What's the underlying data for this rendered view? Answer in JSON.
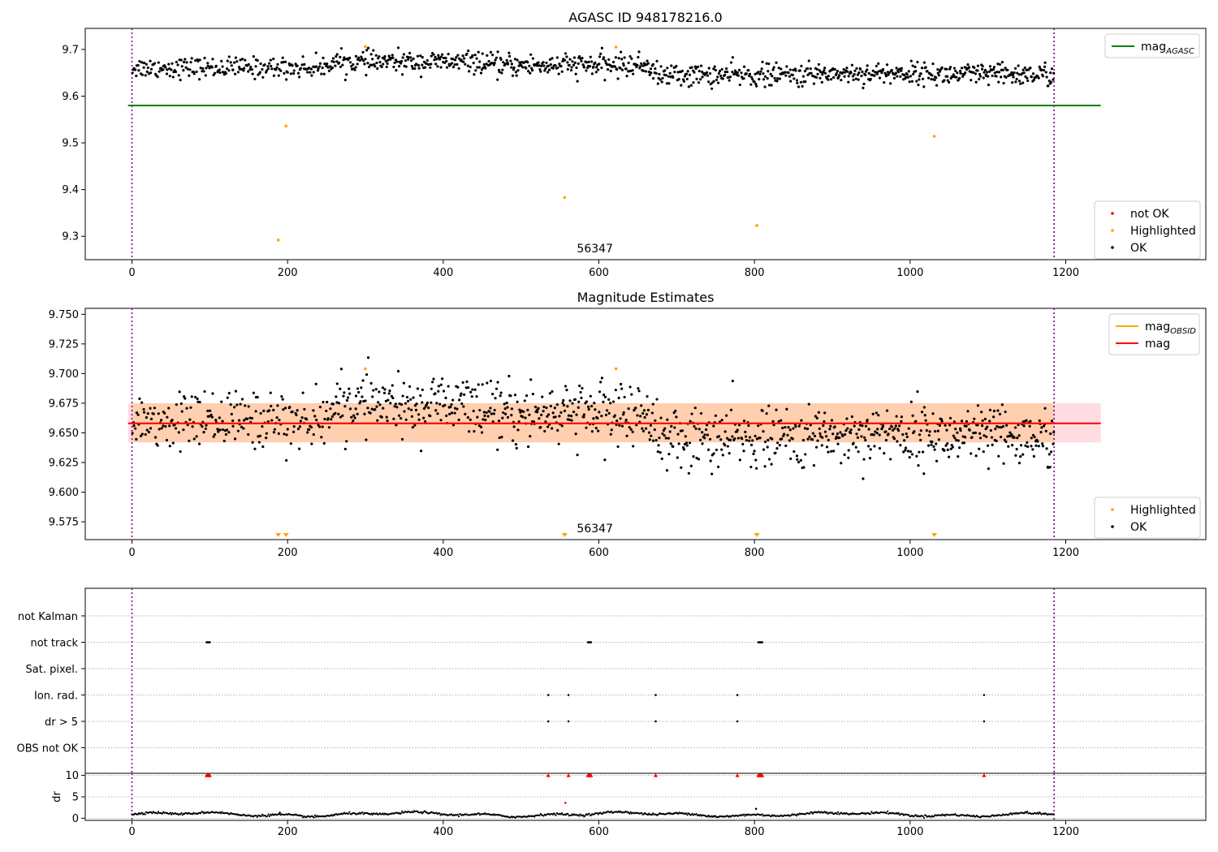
{
  "figure": {
    "title": "AGASC ID 948178216.0",
    "obsid_label": "56347",
    "time_ticks": [
      0,
      200,
      400,
      600,
      800,
      1000,
      1200
    ],
    "xlim": [
      -60,
      1380
    ],
    "vlines_x": [
      0,
      1185
    ],
    "series_colors": {
      "ok": "#000000",
      "highlighted": "#ffa500",
      "not_ok": "#ff0000",
      "agasc": "#008000",
      "mag": "#ff0000",
      "mag_obsid": "#ffa500",
      "vline": "#800080"
    }
  },
  "chart_data": [
    {
      "id": "panel1",
      "type": "scatter",
      "title": "AGASC ID 948178216.0",
      "ylim": [
        9.25,
        9.745
      ],
      "yticks": [
        9.3,
        9.4,
        9.5,
        9.6,
        9.7
      ],
      "ytick_labels": [
        "9.3",
        "9.4",
        "9.5",
        "9.6",
        "9.7"
      ],
      "mag_agasc": 9.58,
      "agasc_x_range": [
        -5,
        1245
      ],
      "legend_top": [
        {
          "label": "mag",
          "sub": "AGASC",
          "color": "#008000",
          "kind": "line"
        }
      ],
      "legend_bottom": [
        {
          "label": "not OK",
          "color": "#ff0000",
          "kind": "marker"
        },
        {
          "label": "Highlighted",
          "color": "#ffa500",
          "kind": "marker"
        },
        {
          "label": "OK",
          "color": "#000000",
          "kind": "marker"
        }
      ],
      "ok_segments": [
        {
          "x0": 0,
          "x1": 250,
          "mean": 9.661,
          "sd": 0.011,
          "n": 210
        },
        {
          "x0": 250,
          "x1": 450,
          "mean": 9.673,
          "sd": 0.011,
          "n": 190
        },
        {
          "x0": 450,
          "x1": 670,
          "mean": 9.666,
          "sd": 0.012,
          "n": 220
        },
        {
          "x0": 670,
          "x1": 880,
          "mean": 9.645,
          "sd": 0.012,
          "n": 200
        },
        {
          "x0": 880,
          "x1": 1030,
          "mean": 9.649,
          "sd": 0.011,
          "n": 150
        },
        {
          "x0": 1030,
          "x1": 1185,
          "mean": 9.646,
          "sd": 0.012,
          "n": 160
        }
      ],
      "highlighted": [
        {
          "x": 188,
          "y": 9.292
        },
        {
          "x": 198,
          "y": 9.536
        },
        {
          "x": 300,
          "y": 9.706
        },
        {
          "x": 556,
          "y": 9.383
        },
        {
          "x": 622,
          "y": 9.705
        },
        {
          "x": 803,
          "y": 9.323
        },
        {
          "x": 1031,
          "y": 9.514
        }
      ]
    },
    {
      "id": "panel2",
      "type": "scatter",
      "title": "Magnitude Estimates",
      "ylim": [
        9.56,
        9.755
      ],
      "yticks": [
        9.575,
        9.6,
        9.625,
        9.65,
        9.675,
        9.7,
        9.725,
        9.75
      ],
      "ytick_labels": [
        "9.575",
        "9.600",
        "9.625",
        "9.650",
        "9.675",
        "9.700",
        "9.725",
        "9.750"
      ],
      "mag": 9.658,
      "mag_band": [
        9.642,
        9.675
      ],
      "mag_obsid": 9.658,
      "mag_x_range": [
        -5,
        1245
      ],
      "legend_top": [
        {
          "label": "mag",
          "sub": "OBSID",
          "color": "#ffa500",
          "kind": "line"
        },
        {
          "label": "mag",
          "sub": "",
          "color": "#ff0000",
          "kind": "line"
        }
      ],
      "legend_bottom": [
        {
          "label": "Highlighted",
          "color": "#ffa500",
          "kind": "marker"
        },
        {
          "label": "OK",
          "color": "#000000",
          "kind": "marker"
        }
      ],
      "highlighted_in_range": [
        {
          "x": 300,
          "y": 9.704
        },
        {
          "x": 622,
          "y": 9.704
        }
      ],
      "off_scale_markers_x": [
        188,
        198,
        556,
        803,
        1031
      ]
    },
    {
      "id": "panel3",
      "type": "scatter",
      "flag_categories": [
        "not Kalman",
        "not track",
        "Sat. pixel.",
        "Ion. rad.",
        "dr > 5",
        "OBS not OK"
      ],
      "flags": {
        "not track": [
          96,
          97,
          98,
          99,
          100,
          586,
          587,
          588,
          589,
          590,
          805,
          806,
          807,
          808,
          809,
          810
        ],
        "Ion. rad.": [
          535,
          561,
          673,
          778,
          1095
        ],
        "dr > 5": [
          535,
          561,
          673,
          778,
          1095
        ]
      }
    },
    {
      "id": "panel4",
      "type": "scatter",
      "ylabel": "dr",
      "ylim": [
        -0.5,
        10.5
      ],
      "yticks": [
        0,
        5,
        10
      ],
      "ytick_labels": [
        "0",
        "5",
        "10"
      ],
      "clipped_x": [
        96,
        97,
        98,
        99,
        100,
        535,
        561,
        586,
        587,
        588,
        589,
        590,
        673,
        778,
        805,
        806,
        807,
        808,
        809,
        810,
        1095
      ],
      "extra_points": [
        {
          "x": 557,
          "y": 3.6
        },
        {
          "x": 190,
          "y": 1.3
        },
        {
          "x": 802,
          "y": 2.2
        }
      ]
    }
  ]
}
